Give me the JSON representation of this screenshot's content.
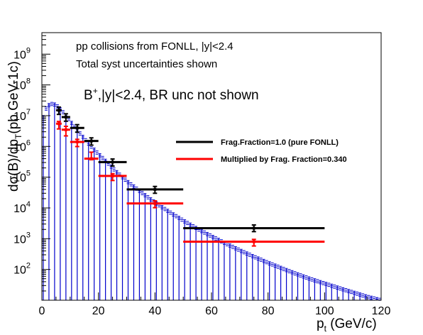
{
  "chart_data": {
    "type": "line",
    "title": "",
    "xlabel": "p",
    "xlabel_sub": "t",
    "xlabel_unit": " (GeV/c)",
    "ylabel": "dσ(B)/dp",
    "ylabel_sub": "T",
    "ylabel_unit": "(pb GeV-1c)",
    "xlim": [
      0,
      120
    ],
    "ylim": [
      10,
      5000000000
    ],
    "y_scale": "log",
    "grid": false,
    "x_ticks": [
      0,
      20,
      40,
      60,
      80,
      100,
      120
    ],
    "y_tick_exponents": [
      2,
      3,
      4,
      5,
      6,
      7,
      8,
      9
    ],
    "annotations": {
      "line1": "pp collisions from FONLL, |y|<2.4",
      "line2": "Total syst uncertainties shown",
      "main_label_prefix": "B",
      "main_label_sup": "+",
      "main_label_suffix": ",|y|<2.4, BR unc not shown"
    },
    "legend": {
      "placement": "right-center",
      "entries": [
        {
          "label": "Frag.Fraction=1.0 (pure FONLL)",
          "color": "#000000"
        },
        {
          "label": "Multiplied by Frag. Fraction=0.340",
          "color": "#ff0000"
        }
      ]
    },
    "histogram": {
      "color": "#0000cc",
      "band_width_factor": 1.13,
      "x": [
        0.5,
        1.5,
        2.5,
        3.5,
        4.5,
        5.5,
        6.5,
        7.5,
        8.5,
        9.5,
        11,
        13,
        15,
        17,
        19,
        22,
        26,
        30,
        35,
        40,
        45,
        50,
        55,
        60,
        65,
        70,
        75,
        80,
        85,
        90,
        95,
        100,
        105,
        110,
        115,
        120
      ],
      "y": [
        9000000,
        17000000,
        22000000,
        24000000,
        23000000,
        20000000,
        16000000,
        13000000,
        10000000,
        7800000,
        5000000,
        3000000,
        1800000,
        1100000,
        700000,
        380000,
        160000,
        75000,
        33000,
        15000,
        7500,
        3900,
        2100,
        1200,
        700,
        420,
        260,
        165,
        108,
        72,
        49,
        35,
        25,
        18,
        13,
        10
      ]
    },
    "series": [
      {
        "name": "Frag.Fraction=1.0 (pure FONLL)",
        "color": "#000000",
        "points": [
          {
            "x": 6,
            "xerr": [
              5,
              7
            ],
            "y": 15000000,
            "yerr": [
              11000000,
              19000000
            ]
          },
          {
            "x": 8.5,
            "xerr": [
              7,
              10
            ],
            "y": 9000000,
            "yerr": [
              6600000,
              11500000
            ]
          },
          {
            "x": 12.5,
            "xerr": [
              10,
              15
            ],
            "y": 4000000,
            "yerr": [
              2900000,
              5100000
            ]
          },
          {
            "x": 17.5,
            "xerr": [
              15,
              20
            ],
            "y": 1500000,
            "yerr": [
              1100000,
              1900000
            ]
          },
          {
            "x": 25,
            "xerr": [
              20,
              30
            ],
            "y": 310000,
            "yerr": [
              230000,
              390000
            ]
          },
          {
            "x": 40,
            "xerr": [
              30,
              50
            ],
            "y": 40000,
            "yerr": [
              30000,
              50000
            ]
          },
          {
            "x": 75,
            "xerr": [
              50,
              100
            ],
            "y": 2200,
            "yerr": [
              1700,
              2800
            ]
          }
        ]
      },
      {
        "name": "Multiplied by Frag. Fraction=0.340",
        "color": "#ff0000",
        "points": [
          {
            "x": 6,
            "xerr": [
              5,
              7
            ],
            "y": 5500000,
            "yerr": [
              3700000,
              6500000
            ]
          },
          {
            "x": 8.5,
            "xerr": [
              7,
              10
            ],
            "y": 3500000,
            "yerr": [
              2200000,
              4500000
            ]
          },
          {
            "x": 12.5,
            "xerr": [
              10,
              15
            ],
            "y": 1400000,
            "yerr": [
              990000,
              1700000
            ]
          },
          {
            "x": 17.5,
            "xerr": [
              15,
              20
            ],
            "y": 400000,
            "yerr": [
              370000,
              650000
            ]
          },
          {
            "x": 25,
            "xerr": [
              20,
              30
            ],
            "y": 110000,
            "yerr": [
              78000,
              130000
            ]
          },
          {
            "x": 40,
            "xerr": [
              30,
              50
            ],
            "y": 14000,
            "yerr": [
              10200,
              17000
            ]
          },
          {
            "x": 75,
            "xerr": [
              50,
              100
            ],
            "y": 800,
            "yerr": [
              580,
              950
            ]
          }
        ]
      }
    ]
  }
}
